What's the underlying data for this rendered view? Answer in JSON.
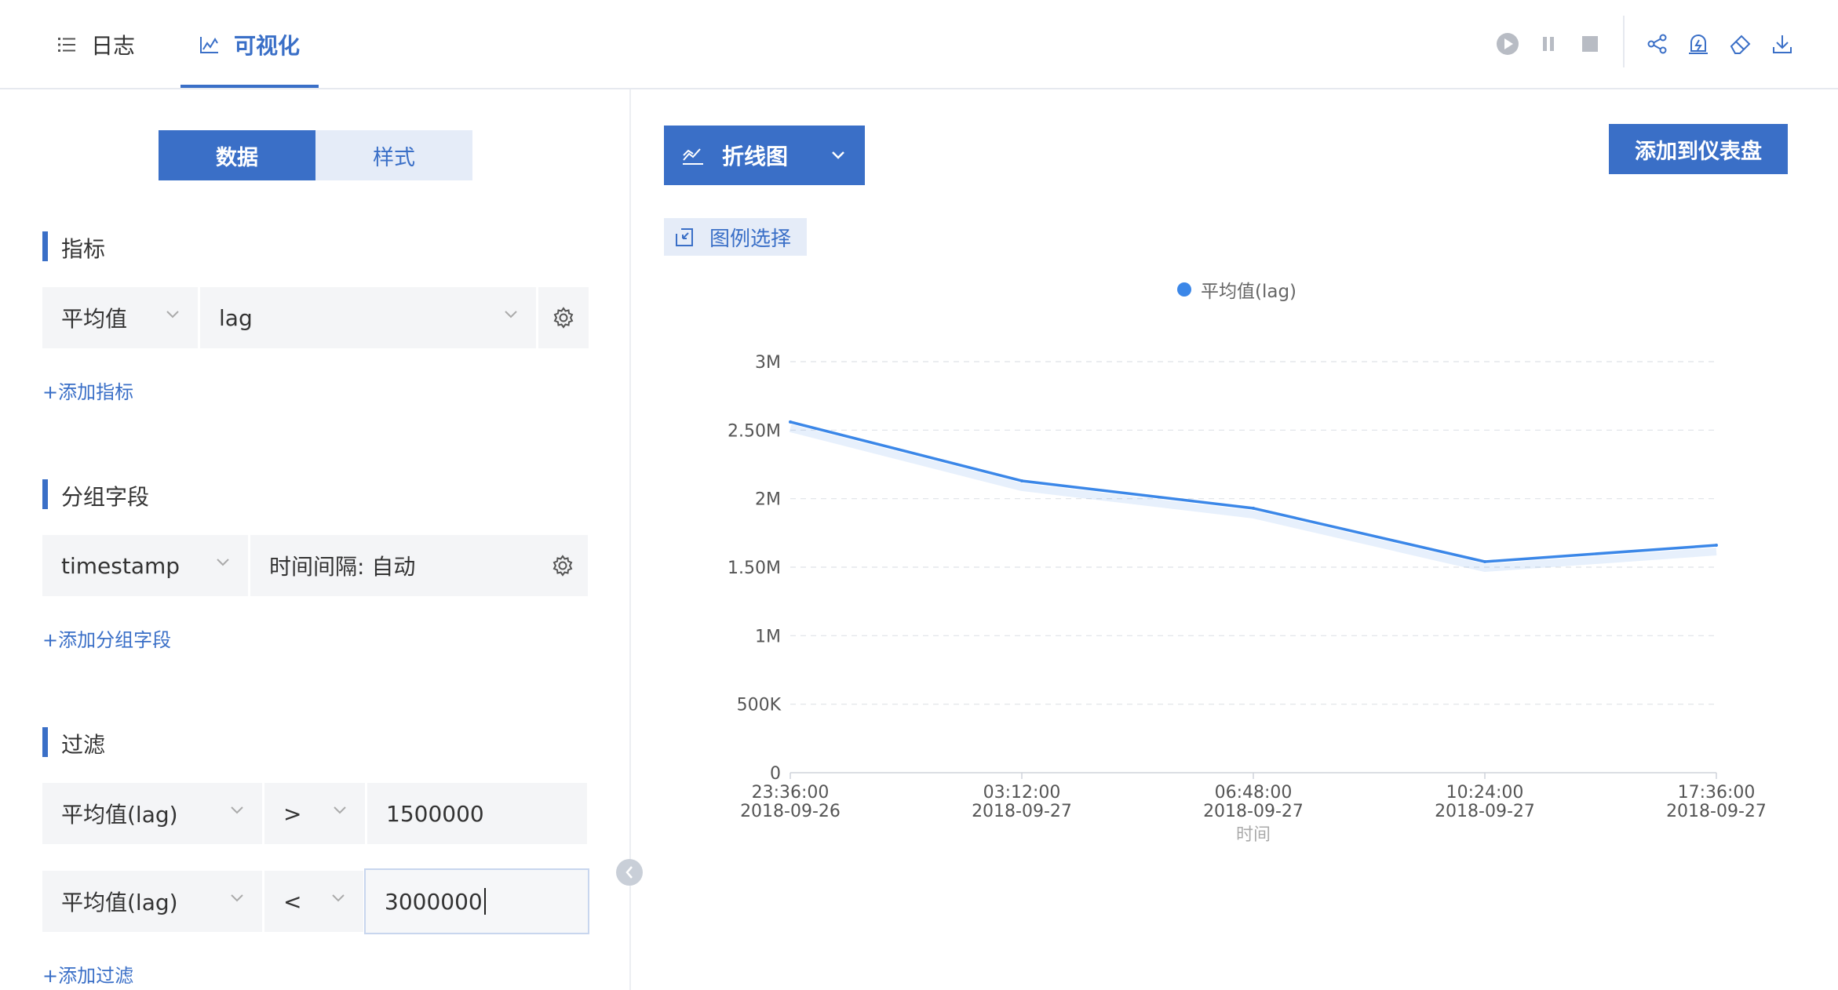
{
  "tabs": [
    {
      "label": "日志",
      "icon": "list-icon"
    },
    {
      "label": "可视化",
      "icon": "line-chart-icon"
    }
  ],
  "toolbar_icons": [
    "play-icon",
    "pause-icon",
    "stop-icon",
    "share-icon",
    "alert-icon",
    "eraser-icon",
    "download-icon"
  ],
  "left": {
    "segments": [
      "数据",
      "样式"
    ],
    "metrics": {
      "title": "指标",
      "agg": "平均值",
      "field": "lag",
      "add": "+添加指标"
    },
    "group": {
      "title": "分组字段",
      "field": "timestamp",
      "interval": "时间间隔: 自动",
      "add": "+添加分组字段"
    },
    "filter": {
      "title": "过滤",
      "rows": [
        {
          "field": "平均值(lag)",
          "op": ">",
          "value": "1500000"
        },
        {
          "field": "平均值(lag)",
          "op": "<",
          "value": "3000000"
        }
      ],
      "add": "+添加过滤"
    }
  },
  "right": {
    "chart_type_label": "折线图",
    "add_dashboard": "添加到仪表盘",
    "legend_select": "图例选择",
    "accent": "#3a6fc7",
    "line_color": "#3b87e8"
  },
  "chart_data": {
    "type": "line",
    "x": [
      "23:36:00\n2018-09-26",
      "03:12:00\n2018-09-27",
      "06:48:00\n2018-09-27",
      "10:24:00\n2018-09-27",
      "17:36:00\n2018-09-27"
    ],
    "series": [
      {
        "name": "平均值(lag)",
        "values": [
          2560000,
          2130000,
          1930000,
          1540000,
          1660000
        ]
      }
    ],
    "xlabel": "时间",
    "ylabel": "",
    "ylim": [
      0,
      3000000
    ],
    "yticks": [
      "0",
      "500K",
      "1M",
      "1.50M",
      "2M",
      "2.50M",
      "3M"
    ],
    "grid": true,
    "legend": "top"
  }
}
